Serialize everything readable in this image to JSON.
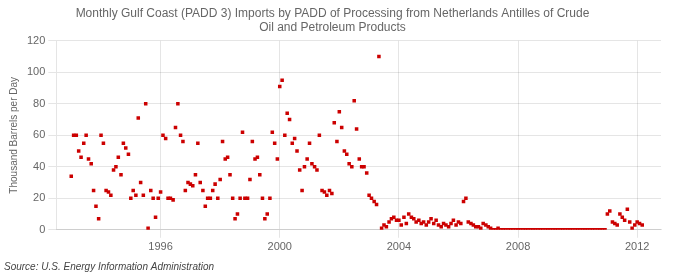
{
  "chart_data": {
    "type": "scatter",
    "title": "Monthly Gulf Coast (PADD 3) Imports by PADD of Processing from Netherlands Antilles of Crude\nOil and Petroleum Products",
    "ylabel": "Thousand Barrels per Day",
    "annotation": "Source: U.S. Energy Information Administration",
    "color": "#cc0000",
    "marker": "square",
    "grid": true,
    "xlim": [
      1992.5,
      2012.8
    ],
    "ylim": [
      0,
      120
    ],
    "xticks": [
      1996,
      2000,
      2004,
      2008,
      2012
    ],
    "yticks": [
      0,
      20,
      40,
      60,
      80,
      100,
      120
    ],
    "x": [
      1993.0,
      1993.08,
      1993.17,
      1993.25,
      1993.33,
      1993.42,
      1993.5,
      1993.58,
      1993.67,
      1993.75,
      1993.83,
      1993.92,
      1994.0,
      1994.08,
      1994.17,
      1994.25,
      1994.33,
      1994.42,
      1994.5,
      1994.58,
      1994.67,
      1994.75,
      1994.83,
      1994.92,
      1995.0,
      1995.08,
      1995.17,
      1995.25,
      1995.33,
      1995.42,
      1995.5,
      1995.58,
      1995.67,
      1995.75,
      1995.83,
      1995.92,
      1996.0,
      1996.08,
      1996.17,
      1996.25,
      1996.33,
      1996.42,
      1996.5,
      1996.58,
      1996.67,
      1996.75,
      1996.83,
      1996.92,
      1997.0,
      1997.08,
      1997.17,
      1997.25,
      1997.33,
      1997.42,
      1997.5,
      1997.58,
      1997.67,
      1997.75,
      1997.83,
      1997.92,
      1998.0,
      1998.08,
      1998.17,
      1998.25,
      1998.33,
      1998.42,
      1998.5,
      1998.58,
      1998.67,
      1998.75,
      1998.83,
      1998.92,
      1999.0,
      1999.08,
      1999.17,
      1999.25,
      1999.33,
      1999.42,
      1999.5,
      1999.58,
      1999.67,
      1999.75,
      1999.83,
      1999.92,
      2000.0,
      2000.08,
      2000.17,
      2000.25,
      2000.33,
      2000.42,
      2000.5,
      2000.58,
      2000.67,
      2000.75,
      2000.83,
      2000.92,
      2001.0,
      2001.08,
      2001.17,
      2001.25,
      2001.33,
      2001.42,
      2001.5,
      2001.58,
      2001.67,
      2001.75,
      2001.83,
      2001.92,
      2002.0,
      2002.08,
      2002.17,
      2002.25,
      2002.33,
      2002.42,
      2002.5,
      2002.58,
      2002.67,
      2002.75,
      2002.83,
      2002.92,
      2003.0,
      2003.08,
      2003.17,
      2003.25,
      2003.33,
      2003.42,
      2003.5,
      2003.58,
      2003.67,
      2003.75,
      2003.83,
      2003.92,
      2004.0,
      2004.08,
      2004.17,
      2004.25,
      2004.33,
      2004.42,
      2004.5,
      2004.58,
      2004.67,
      2004.75,
      2004.83,
      2004.92,
      2005.0,
      2005.08,
      2005.17,
      2005.25,
      2005.33,
      2005.42,
      2005.5,
      2005.58,
      2005.67,
      2005.75,
      2005.83,
      2005.92,
      2006.0,
      2006.08,
      2006.17,
      2006.25,
      2006.33,
      2006.42,
      2006.5,
      2006.58,
      2006.67,
      2006.75,
      2006.83,
      2006.92,
      2007.0,
      2007.08,
      2007.17,
      2007.25,
      2007.33,
      2007.42,
      2007.5,
      2007.58,
      2007.67,
      2007.75,
      2007.83,
      2007.92,
      2008.0,
      2008.08,
      2008.17,
      2008.25,
      2008.33,
      2008.42,
      2008.5,
      2008.58,
      2008.67,
      2008.75,
      2008.83,
      2008.92,
      2009.0,
      2009.08,
      2009.17,
      2009.25,
      2009.33,
      2009.42,
      2009.5,
      2009.58,
      2009.67,
      2009.75,
      2009.83,
      2009.92,
      2010.0,
      2010.08,
      2010.17,
      2010.25,
      2010.33,
      2010.42,
      2010.5,
      2010.58,
      2010.67,
      2010.75,
      2010.83,
      2010.92,
      2011.0,
      2011.08,
      2011.17,
      2011.25,
      2011.33,
      2011.42,
      2011.5,
      2011.58,
      2011.67,
      2011.75,
      2011.83,
      2011.92,
      2012.0,
      2012.08,
      2012.17
    ],
    "values": [
      34,
      60,
      60,
      50,
      46,
      55,
      60,
      45,
      42,
      25,
      15,
      7,
      60,
      55,
      25,
      24,
      22,
      38,
      40,
      46,
      35,
      55,
      52,
      48,
      20,
      25,
      22,
      71,
      30,
      22,
      80,
      1,
      25,
      20,
      8,
      20,
      24,
      60,
      58,
      20,
      20,
      19,
      65,
      80,
      60,
      56,
      25,
      30,
      29,
      28,
      35,
      55,
      30,
      25,
      15,
      20,
      20,
      25,
      29,
      20,
      32,
      56,
      45,
      46,
      35,
      20,
      7,
      10,
      20,
      62,
      20,
      20,
      32,
      56,
      45,
      46,
      35,
      20,
      7,
      10,
      20,
      62,
      55,
      45,
      91,
      95,
      60,
      74,
      70,
      55,
      58,
      50,
      38,
      25,
      40,
      45,
      55,
      42,
      40,
      38,
      60,
      25,
      24,
      22,
      25,
      23,
      68,
      56,
      75,
      65,
      50,
      48,
      42,
      40,
      82,
      64,
      45,
      40,
      40,
      36,
      22,
      20,
      18,
      16,
      110,
      1,
      3,
      2,
      5,
      7,
      8,
      6,
      6,
      3,
      8,
      4,
      10,
      8,
      7,
      5,
      6,
      4,
      5,
      3,
      5,
      7,
      4,
      6,
      3,
      2,
      4,
      3,
      2,
      4,
      6,
      3,
      5,
      4,
      18,
      20,
      5,
      4,
      3,
      2,
      2,
      1,
      4,
      3,
      2,
      1,
      0,
      0,
      1,
      0,
      0,
      0,
      0,
      0,
      0,
      0,
      0,
      0,
      0,
      0,
      0,
      0,
      0,
      0,
      0,
      0,
      0,
      0,
      0,
      0,
      0,
      0,
      0,
      0,
      0,
      0,
      0,
      0,
      0,
      0,
      0,
      0,
      0,
      0,
      0,
      0,
      0,
      0,
      0,
      0,
      0,
      0,
      10,
      12,
      5,
      4,
      3,
      10,
      8,
      6,
      13,
      5,
      1,
      3,
      5,
      4,
      3
    ]
  }
}
